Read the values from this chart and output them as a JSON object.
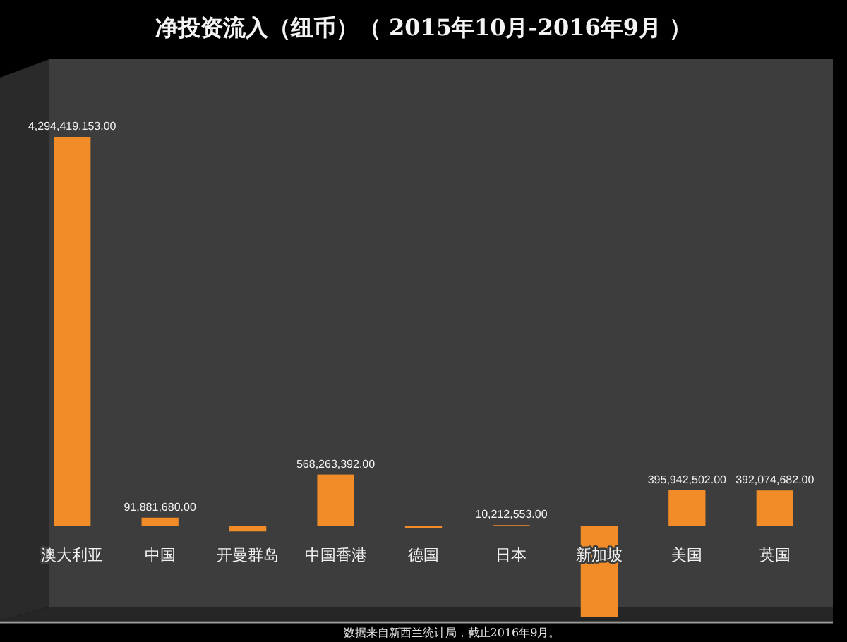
{
  "chart_data": {
    "type": "bar",
    "title": "净投资流入（纽币）（ 2015年10月-2016年9月 ）",
    "categories": [
      "澳大利亚",
      "中国",
      "开曼群岛",
      "中国香港",
      "德国",
      "日本",
      "新加坡",
      "美国",
      "英国"
    ],
    "values": [
      4294419153,
      91881680,
      -60000000,
      568263392,
      -20000000,
      10212553,
      -1000000000,
      395942502,
      392074682
    ],
    "value_labels": [
      "4,294,419,153.00",
      "91,881,680.00",
      null,
      "568,263,392.00",
      null,
      "10,212,553.00",
      null,
      "395,942,502.00",
      "392,074,682.00"
    ],
    "color": "#f28c28",
    "annotations": [
      "数据来自新西兰统计局，截止2016年9月。"
    ]
  }
}
